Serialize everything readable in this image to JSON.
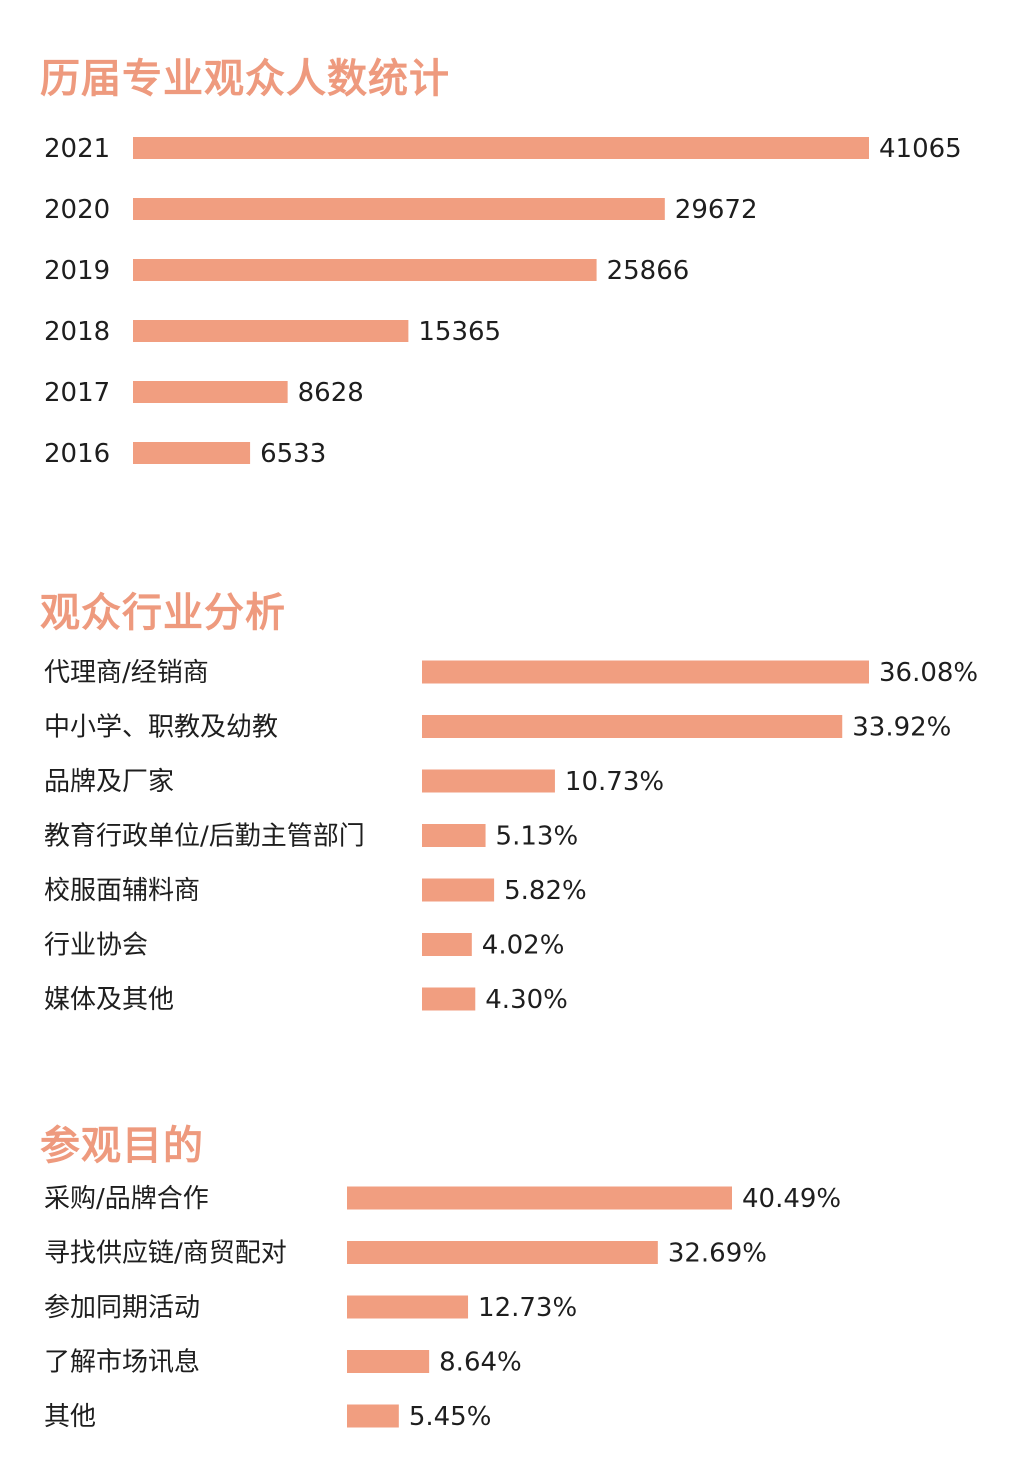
{
  "colors": {
    "title": "#ee9a7e",
    "bar": "#f19e80",
    "text": "#1e1e1e",
    "background": "#ffffff"
  },
  "chart_data": [
    {
      "type": "bar",
      "orientation": "horizontal",
      "title": "历届专业观众人数统计",
      "categories": [
        "2021",
        "2020",
        "2019",
        "2018",
        "2017",
        "2016"
      ],
      "values": [
        41065,
        29672,
        25866,
        15365,
        8628,
        6533
      ],
      "value_labels": [
        "41065",
        "29672",
        "25866",
        "15365",
        "8628",
        "6533"
      ],
      "xlim": [
        0,
        41065
      ],
      "grid": false,
      "legend": "none"
    },
    {
      "type": "bar",
      "orientation": "horizontal",
      "title": "观众行业分析",
      "categories": [
        "代理商/经销商",
        "中小学、职教及幼教",
        "品牌及厂家",
        "教育行政单位/后勤主管部门",
        "校服面辅料商",
        "行业协会",
        "媒体及其他"
      ],
      "values": [
        36.08,
        33.92,
        10.73,
        5.13,
        5.82,
        4.02,
        4.3
      ],
      "value_labels": [
        "36.08%",
        "33.92%",
        "10.73%",
        "5.13%",
        "5.82%",
        "4.02%",
        "4.30%"
      ],
      "xlim": [
        0,
        36.08
      ],
      "grid": false,
      "legend": "none"
    },
    {
      "type": "bar",
      "orientation": "horizontal",
      "title": "参观目的",
      "categories": [
        "采购/品牌合作",
        "寻找供应链/商贸配对",
        "参加同期活动",
        "了解市场讯息",
        "其他"
      ],
      "values": [
        40.49,
        32.69,
        12.73,
        8.64,
        5.45
      ],
      "value_labels": [
        "40.49%",
        "32.69%",
        "12.73%",
        "8.64%",
        "5.45%"
      ],
      "xlim": [
        0,
        40.49
      ],
      "grid": false,
      "legend": "none"
    }
  ]
}
